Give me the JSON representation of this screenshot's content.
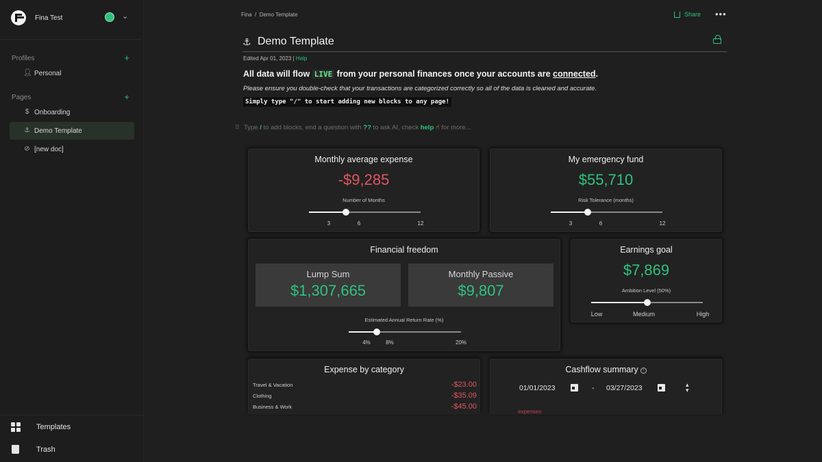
{
  "sidebar": {
    "workspace_name": "Fina Test",
    "profiles_heading": "Profiles",
    "profiles": [
      {
        "label": "Personal",
        "icon": "person-icon"
      }
    ],
    "pages_heading": "Pages",
    "pages": [
      {
        "label": "Onboarding",
        "icon": "dollar-icon"
      },
      {
        "label": "Demo Template",
        "icon": "anchor-icon",
        "active": true
      },
      {
        "label": "[new doc]",
        "icon": "slash-circle-icon"
      }
    ],
    "bottom": [
      {
        "label": "Templates",
        "icon": "templates-grid-icon"
      },
      {
        "label": "Trash",
        "icon": "trash-icon"
      }
    ],
    "status_color": "#2ec27e"
  },
  "header": {
    "breadcrumb_root": "Fina",
    "breadcrumb_sep": "/",
    "breadcrumb_page": "Demo Template",
    "share_label": "Share",
    "more_label": "•••"
  },
  "doc": {
    "title": "Demo Template",
    "edited": "Edited Apr 01, 2023",
    "edited_sep": "|",
    "help_link": "Help",
    "headline_1": "All data will flow ",
    "headline_live": "LIVE",
    "headline_2": " from your personal finances once your accounts are ",
    "headline_link": "connected",
    "headline_end": ".",
    "note": "Please ensure you double-check that your transactions are categorized correctly so all of the data is cleaned and accurate.",
    "code_note": "Simply type \"/\" to start adding new blocks to any page!",
    "prompt_1": "Type ",
    "prompt_slash": "/",
    "prompt_2": " to add blocks, end a question with ",
    "prompt_qq": "??",
    "prompt_3": " to ask AI, check ",
    "prompt_help": "help",
    "prompt_emoji": "☝",
    "prompt_4": " for more..."
  },
  "widgets": {
    "monthly_expense": {
      "title": "Monthly average expense",
      "value": "-$9,285",
      "slider_label": "Number of Months",
      "ticks": [
        "3",
        "6",
        "12"
      ],
      "slider_value": 6,
      "slider_min": 3,
      "slider_max": 12
    },
    "emergency_fund": {
      "title": "My emergency fund",
      "value": "$55,710",
      "slider_label": "Risk Tolerance (months)",
      "ticks": [
        "3",
        "6",
        "12"
      ],
      "slider_value": 6,
      "slider_min": 3,
      "slider_max": 12
    },
    "financial_freedom": {
      "title": "Financial freedom",
      "lump_sum_label": "Lump Sum",
      "lump_sum_value": "$1,307,665",
      "monthly_passive_label": "Monthly Passive",
      "monthly_passive_value": "$9,807",
      "slider_label": "Estimated Annual Return Rate (%)",
      "ticks": [
        "4%",
        "8%",
        "20%"
      ],
      "slider_value": 8,
      "slider_min": 4,
      "slider_max": 20
    },
    "earnings_goal": {
      "title": "Earnings goal",
      "value": "$7,869",
      "slider_label": "Ambition Level (50%)",
      "ticks": [
        "Low",
        "Medium",
        "High"
      ],
      "slider_fraction": 0.5
    },
    "expense_by_category": {
      "title": "Expense by category",
      "rows": [
        {
          "category": "Travel & Vacation",
          "amount": "-$23.00"
        },
        {
          "category": "Clothing",
          "amount": "-$35.09"
        },
        {
          "category": "Business & Work",
          "amount": "-$45.00"
        }
      ]
    },
    "cashflow_summary": {
      "title": "Cashflow summary",
      "start_date": "01/01/2023",
      "date_sep": "-",
      "end_date": "03/27/2023",
      "series_label": "expenses"
    }
  },
  "colors": {
    "accent_green": "#2ec27e",
    "negative_red": "#e25563",
    "background": "#1f1f1f"
  }
}
